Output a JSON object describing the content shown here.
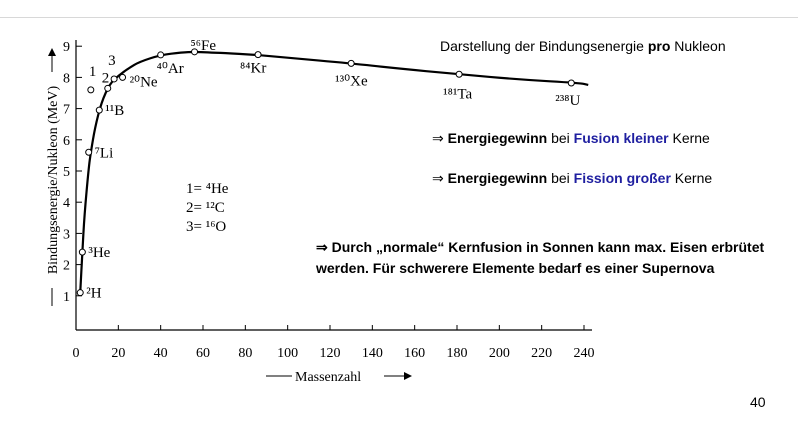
{
  "slide": {
    "title_prefix": "Darstellung der Bindungsenergie ",
    "title_bold": "pro",
    "title_suffix": " Nukleon",
    "note1": {
      "arrow": "⇒ ",
      "bold": "Energiegewinn",
      "mid": " bei ",
      "blue": "Fusion kleiner",
      "end": " Kerne"
    },
    "note2": {
      "arrow": "⇒ ",
      "bold": "Energiegewinn",
      "mid": " bei ",
      "blue": "Fission großer",
      "end": " Kerne"
    },
    "note3": "⇒ Durch „normale“ Kernfusion in Sonnen kann max. Eisen erbrütet werden. Für schwerere Elemente bedarf es einer Supernova",
    "page_number": "40"
  },
  "chart_data": {
    "type": "line",
    "xlabel": "Massenzahl",
    "ylabel": "Bindungsenergie/Nukleon (MeV)",
    "xlim": [
      0,
      240
    ],
    "ylim": [
      0,
      9
    ],
    "xticks": [
      "0",
      "20",
      "40",
      "60",
      "80",
      "100",
      "120",
      "140",
      "160",
      "180",
      "200",
      "220",
      "240"
    ],
    "yticks": [
      "1",
      "2",
      "3",
      "4",
      "5",
      "6",
      "7",
      "8",
      "9"
    ],
    "curve": {
      "x": [
        2,
        3,
        4,
        6,
        7,
        9,
        12,
        16,
        20,
        25,
        30,
        40,
        50,
        56,
        62,
        70,
        84,
        100,
        130,
        150,
        181,
        210,
        238,
        242
      ],
      "y": [
        1.1,
        2.4,
        3.6,
        5.1,
        5.6,
        6.4,
        7.2,
        7.8,
        8.05,
        8.3,
        8.5,
        8.72,
        8.8,
        8.82,
        8.8,
        8.78,
        8.73,
        8.63,
        8.45,
        8.3,
        8.1,
        7.93,
        7.82,
        7.76
      ]
    },
    "points": [
      {
        "label": "²H",
        "x": 2,
        "y": 1.1
      },
      {
        "label": "³He",
        "x": 3,
        "y": 2.4
      },
      {
        "label": "⁷Li",
        "x": 6,
        "y": 5.6
      },
      {
        "label": "¹¹B",
        "x": 11,
        "y": 6.95
      },
      {
        "label": "1",
        "x": 7,
        "y": 7.6
      },
      {
        "label": "2",
        "x": 15,
        "y": 7.65
      },
      {
        "label": "3",
        "x": 18,
        "y": 7.95
      },
      {
        "label": "²⁰Ne",
        "x": 22,
        "y": 8.0
      },
      {
        "label": "⁴⁰Ar",
        "x": 40,
        "y": 8.72
      },
      {
        "label": "⁵⁶Fe",
        "x": 56,
        "y": 8.82
      },
      {
        "label": "⁸⁴Kr",
        "x": 86,
        "y": 8.73
      },
      {
        "label": "¹³⁰Xe",
        "x": 130,
        "y": 8.45
      },
      {
        "label": "¹⁸¹Ta",
        "x": 181,
        "y": 8.1
      },
      {
        "label": "²³⁸U",
        "x": 234,
        "y": 7.82
      }
    ],
    "legend": [
      "1= ⁴He",
      "2= ¹²C",
      "3= ¹⁶O"
    ]
  }
}
